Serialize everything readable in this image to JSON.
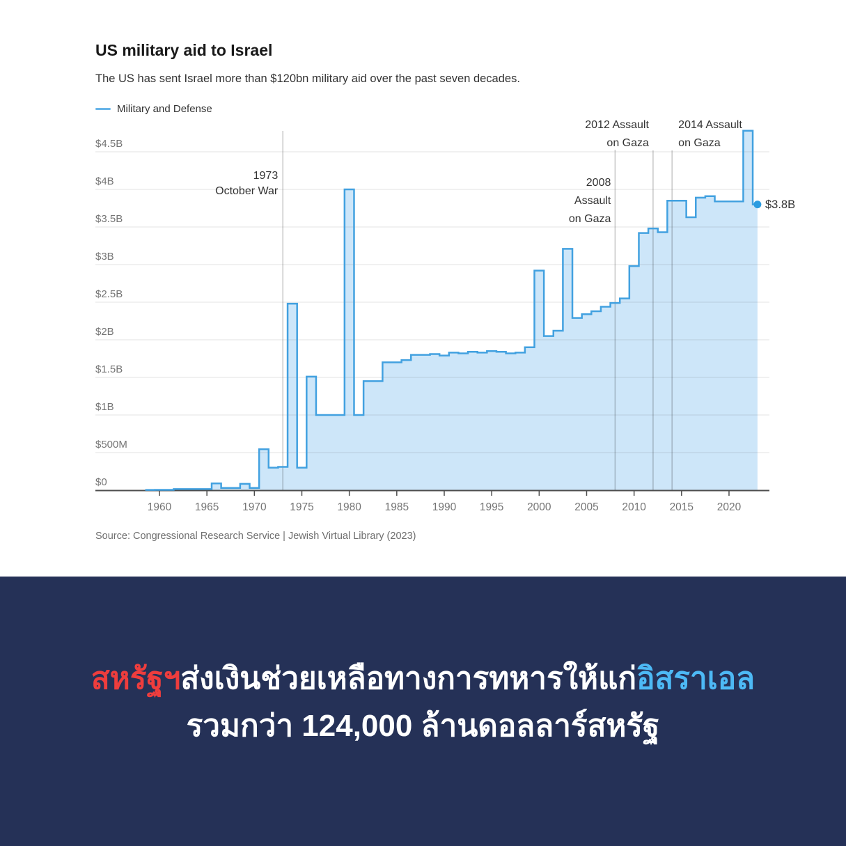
{
  "chart_data": {
    "type": "area",
    "title": "US military aid to Israel",
    "subtitle": "The US has sent Israel more than $120bn military aid over the past seven decades.",
    "legend": [
      "Military and Defense"
    ],
    "source": "Source: Congressional Research Service | Jewish Virtual Library (2023)",
    "ylim": [
      0,
      4.8
    ],
    "grid": true,
    "y_ticks": [
      {
        "value": 0,
        "label": "$0"
      },
      {
        "value": 0.5,
        "label": "$500M"
      },
      {
        "value": 1,
        "label": "$1B"
      },
      {
        "value": 1.5,
        "label": "$1.5B"
      },
      {
        "value": 2,
        "label": "$2B"
      },
      {
        "value": 2.5,
        "label": "$2.5B"
      },
      {
        "value": 3,
        "label": "$3B"
      },
      {
        "value": 3.5,
        "label": "$3.5B"
      },
      {
        "value": 4,
        "label": "$4B"
      },
      {
        "value": 4.5,
        "label": "$4.5B"
      }
    ],
    "x_ticks": [
      1960,
      1965,
      1970,
      1975,
      1980,
      1985,
      1990,
      1995,
      2000,
      2005,
      2010,
      2015,
      2020
    ],
    "series": [
      {
        "name": "Military and Defense",
        "unit": "billion USD",
        "start_year": 1959,
        "end_year": 2023,
        "values": [
          0.004,
          0.005,
          0.005,
          0.015,
          0.015,
          0.015,
          0.015,
          0.09,
          0.03,
          0.03,
          0.085,
          0.03,
          0.545,
          0.3,
          0.31,
          2.48,
          0.3,
          1.51,
          1.0,
          1.0,
          1.0,
          4.0,
          1.0,
          1.45,
          1.45,
          1.7,
          1.7,
          1.73,
          1.8,
          1.8,
          1.81,
          1.79,
          1.83,
          1.82,
          1.84,
          1.83,
          1.85,
          1.84,
          1.82,
          1.83,
          1.9,
          2.92,
          2.05,
          2.12,
          3.21,
          2.29,
          2.34,
          2.38,
          2.44,
          2.49,
          2.55,
          2.98,
          3.42,
          3.48,
          3.43,
          3.85,
          3.85,
          3.63,
          3.89,
          3.91,
          3.84,
          3.84,
          3.84,
          4.78,
          3.8
        ]
      }
    ],
    "annotations": [
      {
        "year": 1973,
        "lines": [
          "1973",
          "October War"
        ],
        "align": "end"
      },
      {
        "year": 2008,
        "lines": [
          "2008",
          "Assault",
          "on Gaza"
        ],
        "align": "end"
      },
      {
        "year": 2012,
        "lines": [
          "2012 Assault",
          "on Gaza"
        ],
        "align": "end"
      },
      {
        "year": 2014,
        "lines": [
          "2014 Assault",
          "on Gaza"
        ],
        "align": "start"
      }
    ],
    "end_marker": {
      "year": 2023,
      "value": 3.8,
      "label": "$3.8B"
    },
    "colors": {
      "area_fill": "#cde6f9",
      "line": "#42a1e0",
      "dot": "#2b9ce0",
      "legend_dash": "#69b5e9"
    }
  },
  "banner": {
    "background": "#253157",
    "line1_segments": [
      {
        "text": "สหรัฐฯ",
        "color": "#ee3d3d"
      },
      {
        "text": "ส่งเงินช่วยเหลือทางการทหารให้แก่",
        "color": "#ffffff"
      },
      {
        "text": "อิสราเอล",
        "color": "#4db9f5"
      }
    ],
    "line2": "รวมกว่า 124,000 ล้านดอลลาร์สหรัฐ"
  }
}
